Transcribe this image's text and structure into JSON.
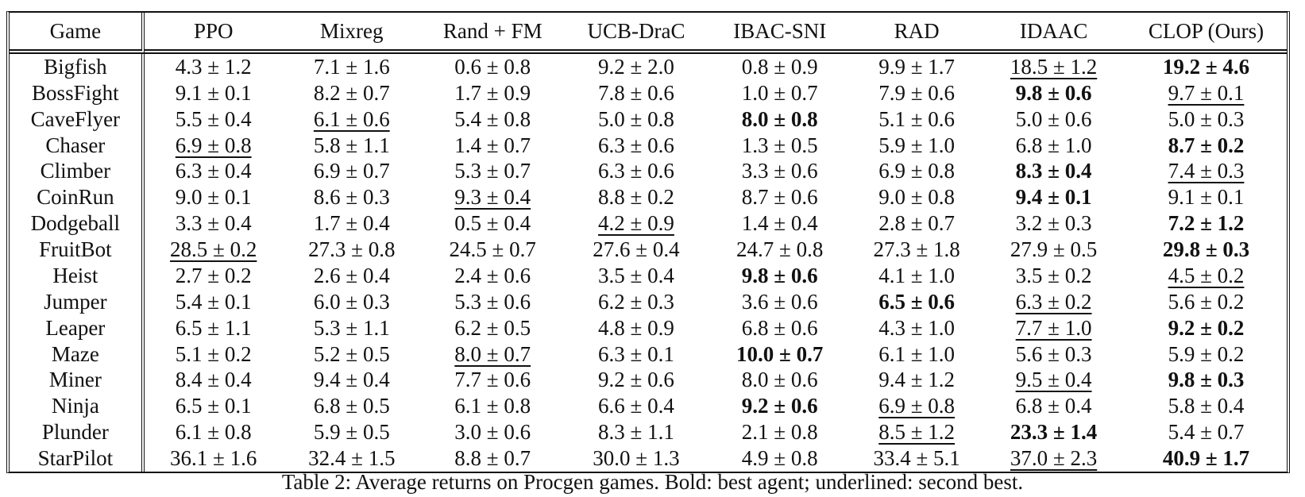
{
  "table": {
    "headers": [
      "Game",
      "PPO",
      "Mixreg",
      "Rand + FM",
      "UCB-DraC",
      "IBAC-SNI",
      "RAD",
      "IDAAC",
      "CLOP (Ours)"
    ],
    "rows": [
      {
        "game": "Bigfish",
        "cells": [
          "4.3 ± 1.2",
          "7.1 ± 1.6",
          "0.6 ± 0.8",
          "9.2 ± 2.0",
          "0.8 ± 0.9",
          "9.9 ± 1.7",
          "18.5 ± 1.2",
          "19.2 ± 4.6"
        ],
        "bold": 7,
        "underline": 6
      },
      {
        "game": "BossFight",
        "cells": [
          "9.1 ± 0.1",
          "8.2 ± 0.7",
          "1.7 ± 0.9",
          "7.8 ± 0.6",
          "1.0 ± 0.7",
          "7.9 ± 0.6",
          "9.8 ± 0.6",
          "9.7 ± 0.1"
        ],
        "bold": 6,
        "underline": 7
      },
      {
        "game": "CaveFlyer",
        "cells": [
          "5.5 ± 0.4",
          "6.1 ± 0.6",
          "5.4 ± 0.8",
          "5.0 ± 0.8",
          "8.0 ± 0.8",
          "5.1 ± 0.6",
          "5.0 ± 0.6",
          "5.0 ± 0.3"
        ],
        "bold": 4,
        "underline": 1
      },
      {
        "game": "Chaser",
        "cells": [
          "6.9 ± 0.8",
          "5.8 ± 1.1",
          "1.4 ± 0.7",
          "6.3 ± 0.6",
          "1.3 ± 0.5",
          "5.9 ± 1.0",
          "6.8 ± 1.0",
          "8.7 ± 0.2"
        ],
        "bold": 7,
        "underline": 0
      },
      {
        "game": "Climber",
        "cells": [
          "6.3 ± 0.4",
          "6.9 ± 0.7",
          "5.3 ± 0.7",
          "6.3 ± 0.6",
          "3.3 ± 0.6",
          "6.9 ± 0.8",
          "8.3 ± 0.4",
          "7.4 ± 0.3"
        ],
        "bold": 6,
        "underline": 7
      },
      {
        "game": "CoinRun",
        "cells": [
          "9.0 ± 0.1",
          "8.6 ± 0.3",
          "9.3 ± 0.4",
          "8.8 ± 0.2",
          "8.7 ± 0.6",
          "9.0 ± 0.8",
          "9.4 ± 0.1",
          "9.1 ± 0.1"
        ],
        "bold": 6,
        "underline": 2
      },
      {
        "game": "Dodgeball",
        "cells": [
          "3.3 ± 0.4",
          "1.7 ± 0.4",
          "0.5 ± 0.4",
          "4.2 ± 0.9",
          "1.4 ± 0.4",
          "2.8 ± 0.7",
          "3.2 ± 0.3",
          "7.2 ± 1.2"
        ],
        "bold": 7,
        "underline": 3
      },
      {
        "game": "FruitBot",
        "cells": [
          "28.5 ± 0.2",
          "27.3 ± 0.8",
          "24.5 ± 0.7",
          "27.6 ± 0.4",
          "24.7 ± 0.8",
          "27.3 ± 1.8",
          "27.9 ± 0.5",
          "29.8 ± 0.3"
        ],
        "bold": 7,
        "underline": 0
      },
      {
        "game": "Heist",
        "cells": [
          "2.7 ± 0.2",
          "2.6 ± 0.4",
          "2.4 ± 0.6",
          "3.5 ± 0.4",
          "9.8 ± 0.6",
          "4.1 ± 1.0",
          "3.5 ± 0.2",
          "4.5 ± 0.2"
        ],
        "bold": 4,
        "underline": 7
      },
      {
        "game": "Jumper",
        "cells": [
          "5.4 ± 0.1",
          "6.0 ± 0.3",
          "5.3 ± 0.6",
          "6.2 ± 0.3",
          "3.6 ± 0.6",
          "6.5 ± 0.6",
          "6.3 ± 0.2",
          "5.6 ± 0.2"
        ],
        "bold": 5,
        "underline": 6
      },
      {
        "game": "Leaper",
        "cells": [
          "6.5 ± 1.1",
          "5.3 ± 1.1",
          "6.2 ± 0.5",
          "4.8 ± 0.9",
          "6.8 ± 0.6",
          "4.3 ± 1.0",
          "7.7 ± 1.0",
          "9.2 ± 0.2"
        ],
        "bold": 7,
        "underline": 6
      },
      {
        "game": "Maze",
        "cells": [
          "5.1 ± 0.2",
          "5.2 ± 0.5",
          "8.0 ± 0.7",
          "6.3 ± 0.1",
          "10.0 ± 0.7",
          "6.1 ± 1.0",
          "5.6 ± 0.3",
          "5.9 ± 0.2"
        ],
        "bold": 4,
        "underline": 2
      },
      {
        "game": "Miner",
        "cells": [
          "8.4 ± 0.4",
          "9.4 ± 0.4",
          "7.7 ± 0.6",
          "9.2 ± 0.6",
          "8.0 ± 0.6",
          "9.4 ± 1.2",
          "9.5 ± 0.4",
          "9.8 ± 0.3"
        ],
        "bold": 7,
        "underline": 6
      },
      {
        "game": "Ninja",
        "cells": [
          "6.5 ± 0.1",
          "6.8 ± 0.5",
          "6.1 ± 0.8",
          "6.6 ± 0.4",
          "9.2 ± 0.6",
          "6.9 ± 0.8",
          "6.8 ± 0.4",
          "5.8 ± 0.4"
        ],
        "bold": 4,
        "underline": 5
      },
      {
        "game": "Plunder",
        "cells": [
          "6.1 ± 0.8",
          "5.9 ± 0.5",
          "3.0 ± 0.6",
          "8.3 ± 1.1",
          "2.1 ± 0.8",
          "8.5 ± 1.2",
          "23.3 ± 1.4",
          "5.4 ± 0.7"
        ],
        "bold": 6,
        "underline": 5
      },
      {
        "game": "StarPilot",
        "cells": [
          "36.1 ± 1.6",
          "32.4 ± 1.5",
          "8.8 ± 0.7",
          "30.0 ± 1.3",
          "4.9 ± 0.8",
          "33.4 ± 5.1",
          "37.0 ± 2.3",
          "40.9 ± 1.7"
        ],
        "bold": 7,
        "underline": 6
      }
    ]
  },
  "caption": "Table 2: Average returns on Procgen games. Bold: best agent; underlined: second best."
}
